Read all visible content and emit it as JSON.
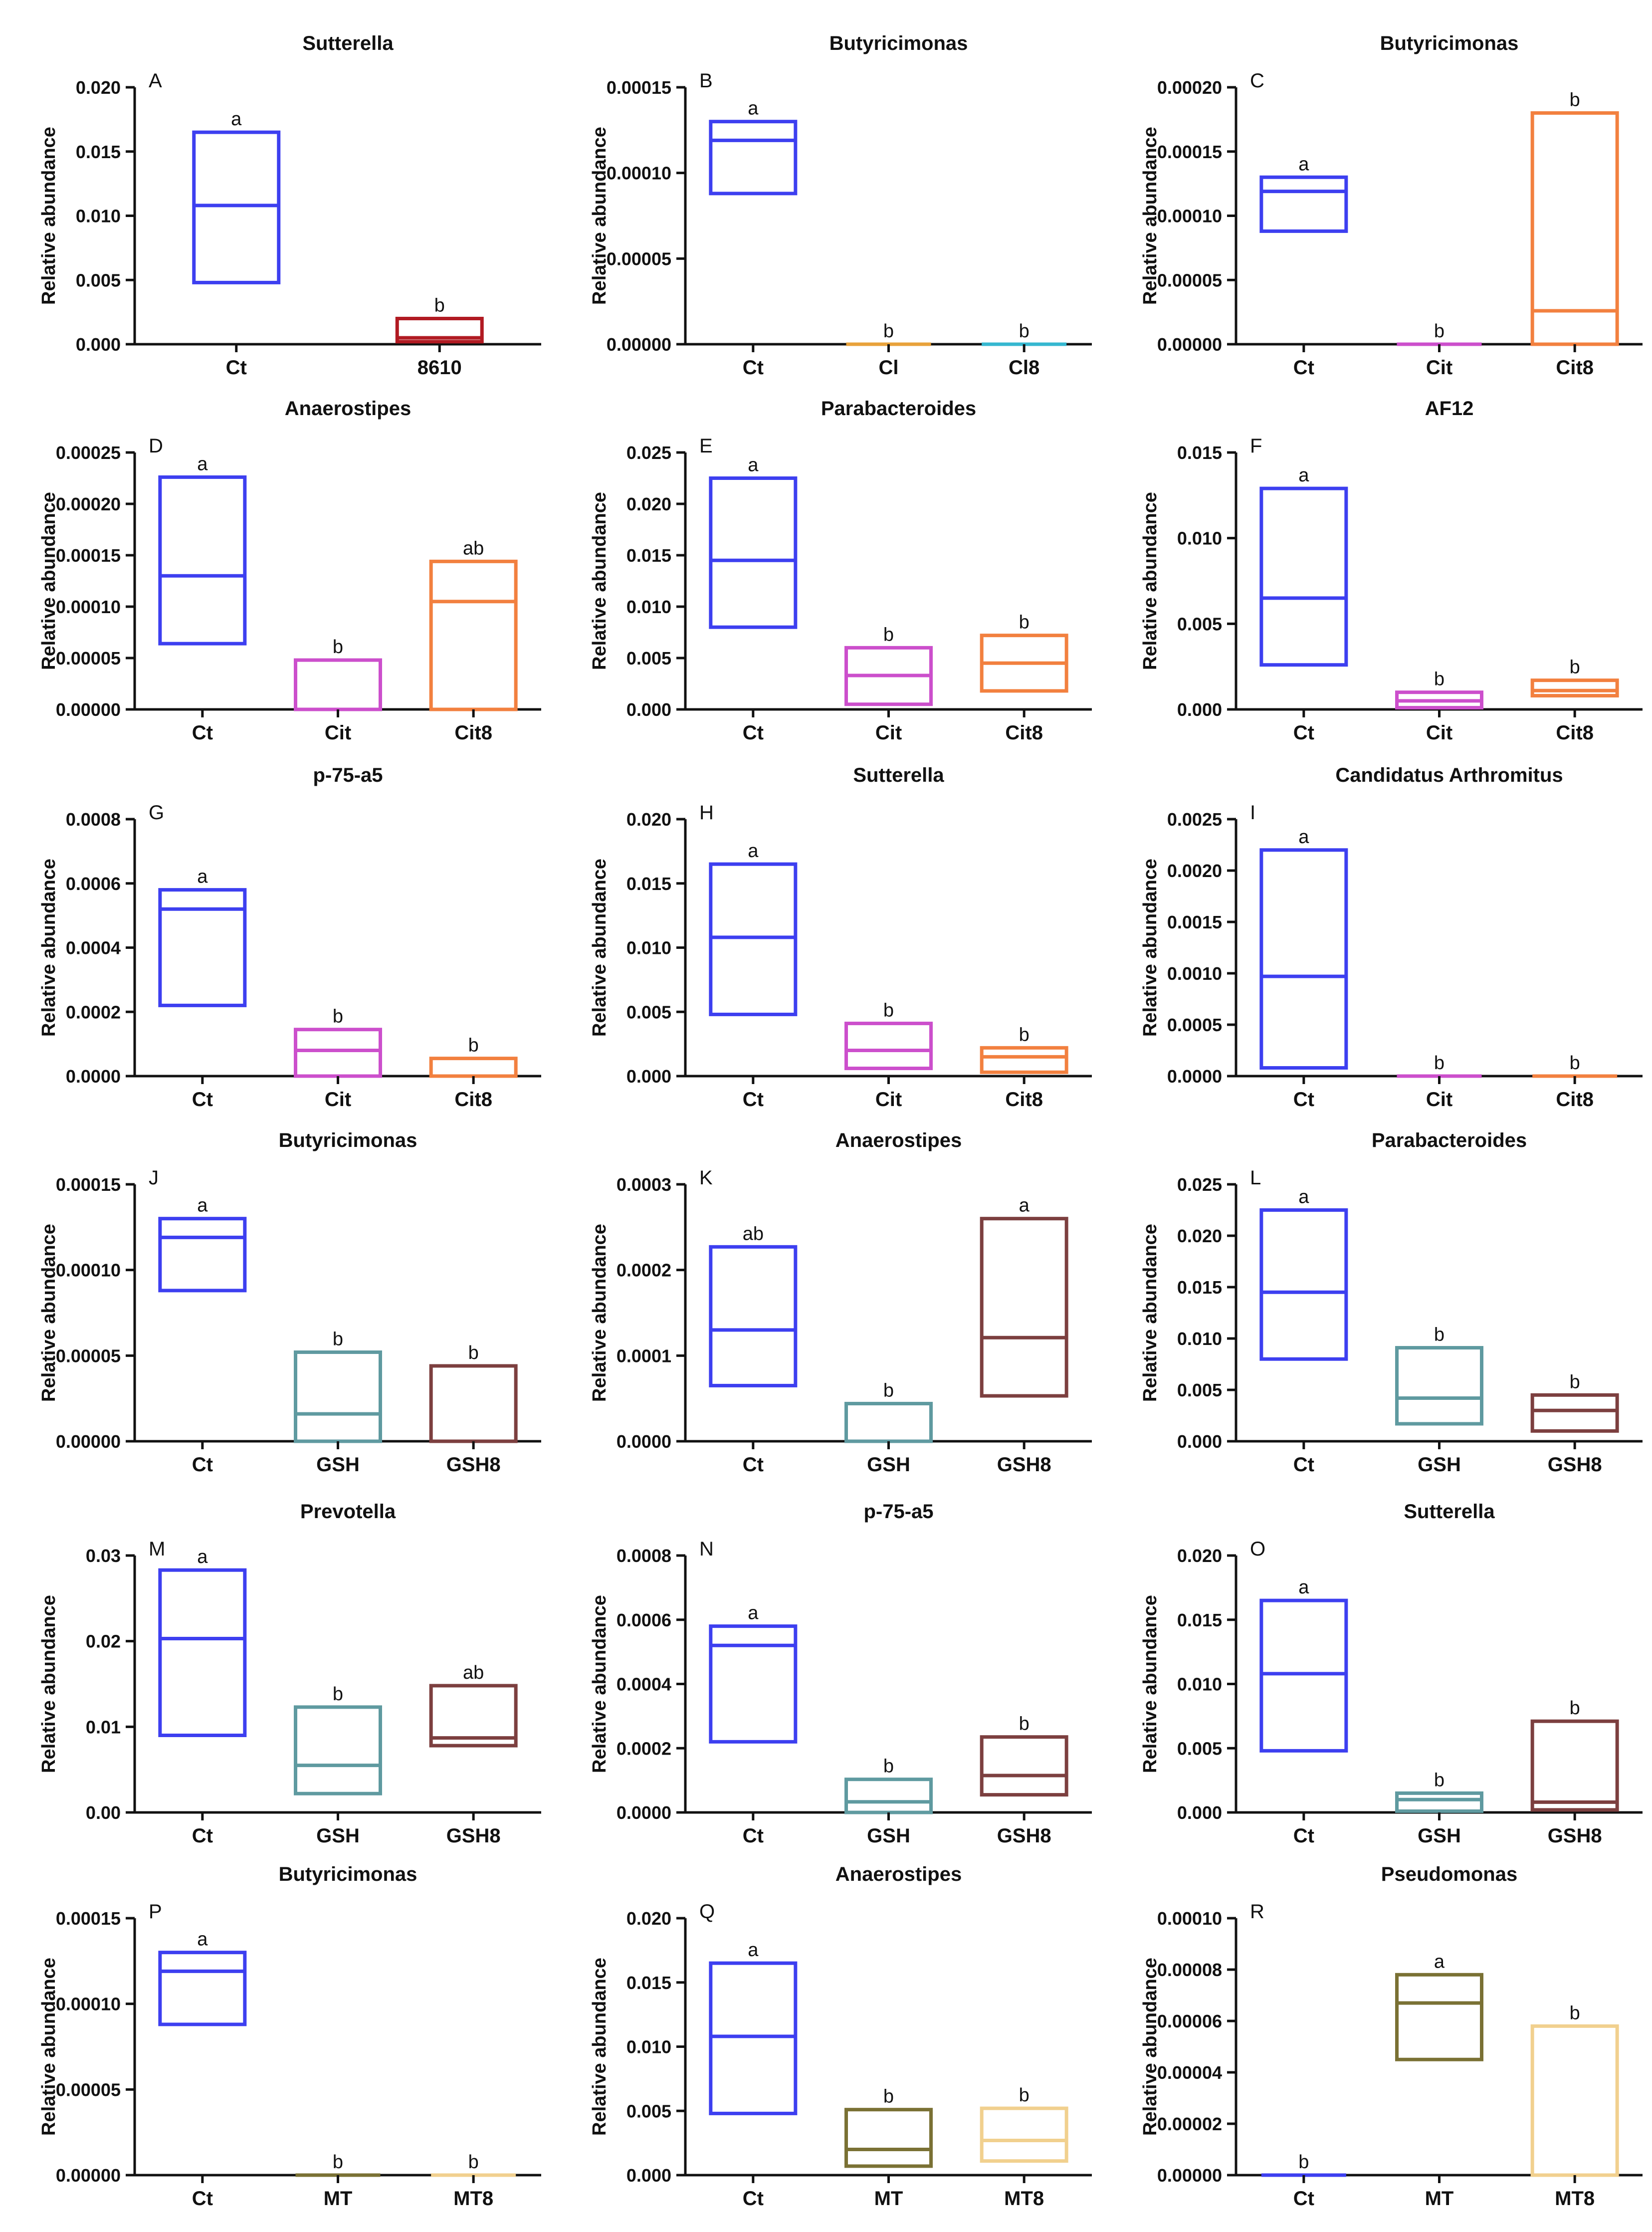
{
  "figure": {
    "ylabel": "Relative abundance",
    "colors": {
      "Ct": "#3d3ff0",
      "8610": "#b11a22",
      "Cl": "#e8a23a",
      "Cl8": "#35b7d0",
      "Cit": "#cc4fcc",
      "Cit8": "#f2803f",
      "GSH": "#5f9aa0",
      "GSH8": "#7c3f3f",
      "MT": "#7a7134",
      "MT8": "#f1d08e",
      "axis": "#111111",
      "text": "#111111"
    }
  },
  "chart_data": [
    {
      "letter": "A",
      "title": "Sutterella",
      "type": "box",
      "ylim": [
        0,
        0.02
      ],
      "ticks": [
        "0.000",
        "0.005",
        "0.010",
        "0.015",
        "0.020"
      ],
      "categories": [
        "Ct",
        "8610"
      ],
      "boxes": [
        {
          "group": "Ct",
          "low": 0.0048,
          "median": 0.0108,
          "high": 0.0165,
          "sig": "a"
        },
        {
          "group": "8610",
          "low": 0.0002,
          "median": 0.0005,
          "high": 0.002,
          "sig": "b"
        }
      ]
    },
    {
      "letter": "B",
      "title": "Butyricimonas",
      "type": "box",
      "ylim": [
        0,
        0.00015
      ],
      "ticks": [
        "0.00000",
        "0.00005",
        "0.00010",
        "0.00015"
      ],
      "categories": [
        "Ct",
        "Cl",
        "Cl8"
      ],
      "boxes": [
        {
          "group": "Ct",
          "low": 8.8e-05,
          "median": 0.000119,
          "high": 0.00013,
          "sig": "a"
        },
        {
          "group": "Cl",
          "low": 0,
          "median": 0,
          "high": 0,
          "sig": "b"
        },
        {
          "group": "Cl8",
          "low": 0,
          "median": 0,
          "high": 0,
          "sig": "b"
        }
      ]
    },
    {
      "letter": "C",
      "title": "Butyricimonas",
      "type": "box",
      "ylim": [
        0,
        0.0002
      ],
      "ticks": [
        "0.00000",
        "0.00005",
        "0.00010",
        "0.00015",
        "0.00020"
      ],
      "categories": [
        "Ct",
        "Cit",
        "Cit8"
      ],
      "boxes": [
        {
          "group": "Ct",
          "low": 8.8e-05,
          "median": 0.000119,
          "high": 0.00013,
          "sig": "a"
        },
        {
          "group": "Cit",
          "low": 0,
          "median": 0,
          "high": 0,
          "sig": "b"
        },
        {
          "group": "Cit8",
          "low": 0,
          "median": 2.6e-05,
          "high": 0.00018,
          "sig": "b"
        }
      ]
    },
    {
      "letter": "D",
      "title": "Anaerostipes",
      "type": "box",
      "ylim": [
        0,
        0.00025
      ],
      "ticks": [
        "0.00000",
        "0.00005",
        "0.00010",
        "0.00015",
        "0.00020",
        "0.00025"
      ],
      "categories": [
        "Ct",
        "Cit",
        "Cit8"
      ],
      "boxes": [
        {
          "group": "Ct",
          "low": 6.4e-05,
          "median": 0.00013,
          "high": 0.000226,
          "sig": "a"
        },
        {
          "group": "Cit",
          "low": 0,
          "median": 0,
          "high": 4.8e-05,
          "sig": "b"
        },
        {
          "group": "Cit8",
          "low": 0,
          "median": 0.000105,
          "high": 0.000144,
          "sig": "ab"
        }
      ]
    },
    {
      "letter": "E",
      "title": "Parabacteroides",
      "type": "box",
      "ylim": [
        0,
        0.025
      ],
      "ticks": [
        "0.000",
        "0.005",
        "0.010",
        "0.015",
        "0.020",
        "0.025"
      ],
      "categories": [
        "Ct",
        "Cit",
        "Cit8"
      ],
      "boxes": [
        {
          "group": "Ct",
          "low": 0.008,
          "median": 0.0145,
          "high": 0.0225,
          "sig": "a"
        },
        {
          "group": "Cit",
          "low": 0.0005,
          "median": 0.0033,
          "high": 0.006,
          "sig": "b"
        },
        {
          "group": "Cit8",
          "low": 0.0018,
          "median": 0.0045,
          "high": 0.0072,
          "sig": "b"
        }
      ]
    },
    {
      "letter": "F",
      "title": "AF12",
      "type": "box",
      "ylim": [
        0,
        0.015
      ],
      "ticks": [
        "0.000",
        "0.005",
        "0.010",
        "0.015"
      ],
      "categories": [
        "Ct",
        "Cit",
        "Cit8"
      ],
      "boxes": [
        {
          "group": "Ct",
          "low": 0.0026,
          "median": 0.0065,
          "high": 0.0129,
          "sig": "a"
        },
        {
          "group": "Cit",
          "low": 0.0001,
          "median": 0.0005,
          "high": 0.001,
          "sig": "b"
        },
        {
          "group": "Cit8",
          "low": 0.0008,
          "median": 0.0011,
          "high": 0.0017,
          "sig": "b"
        }
      ]
    },
    {
      "letter": "G",
      "title": "p-75-a5",
      "type": "box",
      "ylim": [
        0,
        0.0008
      ],
      "ticks": [
        "0.0000",
        "0.0002",
        "0.0004",
        "0.0006",
        "0.0008"
      ],
      "categories": [
        "Ct",
        "Cit",
        "Cit8"
      ],
      "boxes": [
        {
          "group": "Ct",
          "low": 0.00022,
          "median": 0.00052,
          "high": 0.00058,
          "sig": "a"
        },
        {
          "group": "Cit",
          "low": 0,
          "median": 8e-05,
          "high": 0.000145,
          "sig": "b"
        },
        {
          "group": "Cit8",
          "low": 0,
          "median": 0,
          "high": 5.5e-05,
          "sig": "b"
        }
      ]
    },
    {
      "letter": "H",
      "title": "Sutterella",
      "type": "box",
      "ylim": [
        0,
        0.02
      ],
      "ticks": [
        "0.000",
        "0.005",
        "0.010",
        "0.015",
        "0.020"
      ],
      "categories": [
        "Ct",
        "Cit",
        "Cit8"
      ],
      "boxes": [
        {
          "group": "Ct",
          "low": 0.0048,
          "median": 0.0108,
          "high": 0.0165,
          "sig": "a"
        },
        {
          "group": "Cit",
          "low": 0.0006,
          "median": 0.002,
          "high": 0.0041,
          "sig": "b"
        },
        {
          "group": "Cit8",
          "low": 0.0003,
          "median": 0.0015,
          "high": 0.0022,
          "sig": "b"
        }
      ]
    },
    {
      "letter": "I",
      "title": "Candidatus Arthromitus",
      "type": "box",
      "ylim": [
        0,
        0.0025
      ],
      "ticks": [
        "0.0000",
        "0.0005",
        "0.0010",
        "0.0015",
        "0.0020",
        "0.0025"
      ],
      "categories": [
        "Ct",
        "Cit",
        "Cit8"
      ],
      "boxes": [
        {
          "group": "Ct",
          "low": 8e-05,
          "median": 0.00097,
          "high": 0.0022,
          "sig": "a"
        },
        {
          "group": "Cit",
          "low": 0,
          "median": 0,
          "high": 0,
          "sig": "b"
        },
        {
          "group": "Cit8",
          "low": 0,
          "median": 0,
          "high": 0,
          "sig": "b"
        }
      ]
    },
    {
      "letter": "J",
      "title": "Butyricimonas",
      "type": "box",
      "ylim": [
        0,
        0.00015
      ],
      "ticks": [
        "0.00000",
        "0.00005",
        "0.00010",
        "0.00015"
      ],
      "categories": [
        "Ct",
        "GSH",
        "GSH8"
      ],
      "boxes": [
        {
          "group": "Ct",
          "low": 8.8e-05,
          "median": 0.000119,
          "high": 0.00013,
          "sig": "a"
        },
        {
          "group": "GSH",
          "low": 0,
          "median": 1.6e-05,
          "high": 5.2e-05,
          "sig": "b"
        },
        {
          "group": "GSH8",
          "low": 0,
          "median": 0,
          "high": 4.4e-05,
          "sig": "b"
        }
      ]
    },
    {
      "letter": "K",
      "title": "Anaerostipes",
      "type": "box",
      "ylim": [
        0,
        0.0003
      ],
      "ticks": [
        "0.0000",
        "0.0001",
        "0.0002",
        "0.0003"
      ],
      "categories": [
        "Ct",
        "GSH",
        "GSH8"
      ],
      "boxes": [
        {
          "group": "Ct",
          "low": 6.5e-05,
          "median": 0.00013,
          "high": 0.000227,
          "sig": "ab"
        },
        {
          "group": "GSH",
          "low": 0,
          "median": 0,
          "high": 4.4e-05,
          "sig": "b"
        },
        {
          "group": "GSH8",
          "low": 5.3e-05,
          "median": 0.000121,
          "high": 0.00026,
          "sig": "a"
        }
      ]
    },
    {
      "letter": "L",
      "title": "Parabacteroides",
      "type": "box",
      "ylim": [
        0,
        0.025
      ],
      "ticks": [
        "0.000",
        "0.005",
        "0.010",
        "0.015",
        "0.020",
        "0.025"
      ],
      "categories": [
        "Ct",
        "GSH",
        "GSH8"
      ],
      "boxes": [
        {
          "group": "Ct",
          "low": 0.008,
          "median": 0.0145,
          "high": 0.0225,
          "sig": "a"
        },
        {
          "group": "GSH",
          "low": 0.0017,
          "median": 0.0042,
          "high": 0.0091,
          "sig": "b"
        },
        {
          "group": "GSH8",
          "low": 0.001,
          "median": 0.003,
          "high": 0.0045,
          "sig": "b"
        }
      ]
    },
    {
      "letter": "M",
      "title": "Prevotella",
      "type": "box",
      "ylim": [
        0,
        0.03
      ],
      "ticks": [
        "0.00",
        "0.01",
        "0.02",
        "0.03"
      ],
      "categories": [
        "Ct",
        "GSH",
        "GSH8"
      ],
      "boxes": [
        {
          "group": "Ct",
          "low": 0.009,
          "median": 0.0203,
          "high": 0.0283,
          "sig": "a"
        },
        {
          "group": "GSH",
          "low": 0.0022,
          "median": 0.0055,
          "high": 0.0123,
          "sig": "b"
        },
        {
          "group": "GSH8",
          "low": 0.0078,
          "median": 0.0087,
          "high": 0.0148,
          "sig": "ab"
        }
      ]
    },
    {
      "letter": "N",
      "title": "p-75-a5",
      "type": "box",
      "ylim": [
        0,
        0.0008
      ],
      "ticks": [
        "0.0000",
        "0.0002",
        "0.0004",
        "0.0006",
        "0.0008"
      ],
      "categories": [
        "Ct",
        "GSH",
        "GSH8"
      ],
      "boxes": [
        {
          "group": "Ct",
          "low": 0.00022,
          "median": 0.00052,
          "high": 0.00058,
          "sig": "a"
        },
        {
          "group": "GSH",
          "low": 0,
          "median": 3.3e-05,
          "high": 0.000103,
          "sig": "b"
        },
        {
          "group": "GSH8",
          "low": 5.5e-05,
          "median": 0.000115,
          "high": 0.000235,
          "sig": "b"
        }
      ]
    },
    {
      "letter": "O",
      "title": "Sutterella",
      "type": "box",
      "ylim": [
        0,
        0.02
      ],
      "ticks": [
        "0.000",
        "0.005",
        "0.010",
        "0.015",
        "0.020"
      ],
      "categories": [
        "Ct",
        "GSH",
        "GSH8"
      ],
      "boxes": [
        {
          "group": "Ct",
          "low": 0.0048,
          "median": 0.0108,
          "high": 0.0165,
          "sig": "a"
        },
        {
          "group": "GSH",
          "low": 0.0001,
          "median": 0.001,
          "high": 0.0015,
          "sig": "b"
        },
        {
          "group": "GSH8",
          "low": 0.0002,
          "median": 0.0008,
          "high": 0.0071,
          "sig": "b"
        }
      ]
    },
    {
      "letter": "P",
      "title": "Butyricimonas",
      "type": "box",
      "ylim": [
        0,
        0.00015
      ],
      "ticks": [
        "0.00000",
        "0.00005",
        "0.00010",
        "0.00015"
      ],
      "categories": [
        "Ct",
        "MT",
        "MT8"
      ],
      "boxes": [
        {
          "group": "Ct",
          "low": 8.8e-05,
          "median": 0.000119,
          "high": 0.00013,
          "sig": "a"
        },
        {
          "group": "MT",
          "low": 0,
          "median": 0,
          "high": 0,
          "sig": "b"
        },
        {
          "group": "MT8",
          "low": 0,
          "median": 0,
          "high": 0,
          "sig": "b"
        }
      ]
    },
    {
      "letter": "Q",
      "title": "Anaerostipes",
      "type": "box",
      "ylim": [
        0,
        0.02
      ],
      "ticks": [
        "0.000",
        "0.005",
        "0.010",
        "0.015",
        "0.020"
      ],
      "categories": [
        "Ct",
        "MT",
        "MT8"
      ],
      "boxes": [
        {
          "group": "Ct",
          "low": 0.0048,
          "median": 0.0108,
          "high": 0.0165,
          "sig": "a"
        },
        {
          "group": "MT",
          "low": 0.0007,
          "median": 0.002,
          "high": 0.0051,
          "sig": "b"
        },
        {
          "group": "MT8",
          "low": 0.0011,
          "median": 0.0027,
          "high": 0.0052,
          "sig": "b"
        }
      ]
    },
    {
      "letter": "R",
      "title": "Pseudomonas",
      "type": "box",
      "ylim": [
        0,
        0.0001
      ],
      "ticks": [
        "0.00000",
        "0.00002",
        "0.00004",
        "0.00006",
        "0.00008",
        "0.00010"
      ],
      "categories": [
        "Ct",
        "MT",
        "MT8"
      ],
      "boxes": [
        {
          "group": "Ct",
          "low": 0,
          "median": 0,
          "high": 0,
          "sig": "b"
        },
        {
          "group": "MT",
          "low": 4.5e-05,
          "median": 6.7e-05,
          "high": 7.8e-05,
          "sig": "a"
        },
        {
          "group": "MT8",
          "low": 0,
          "median": 0,
          "high": 5.8e-05,
          "sig": "b"
        }
      ]
    }
  ]
}
